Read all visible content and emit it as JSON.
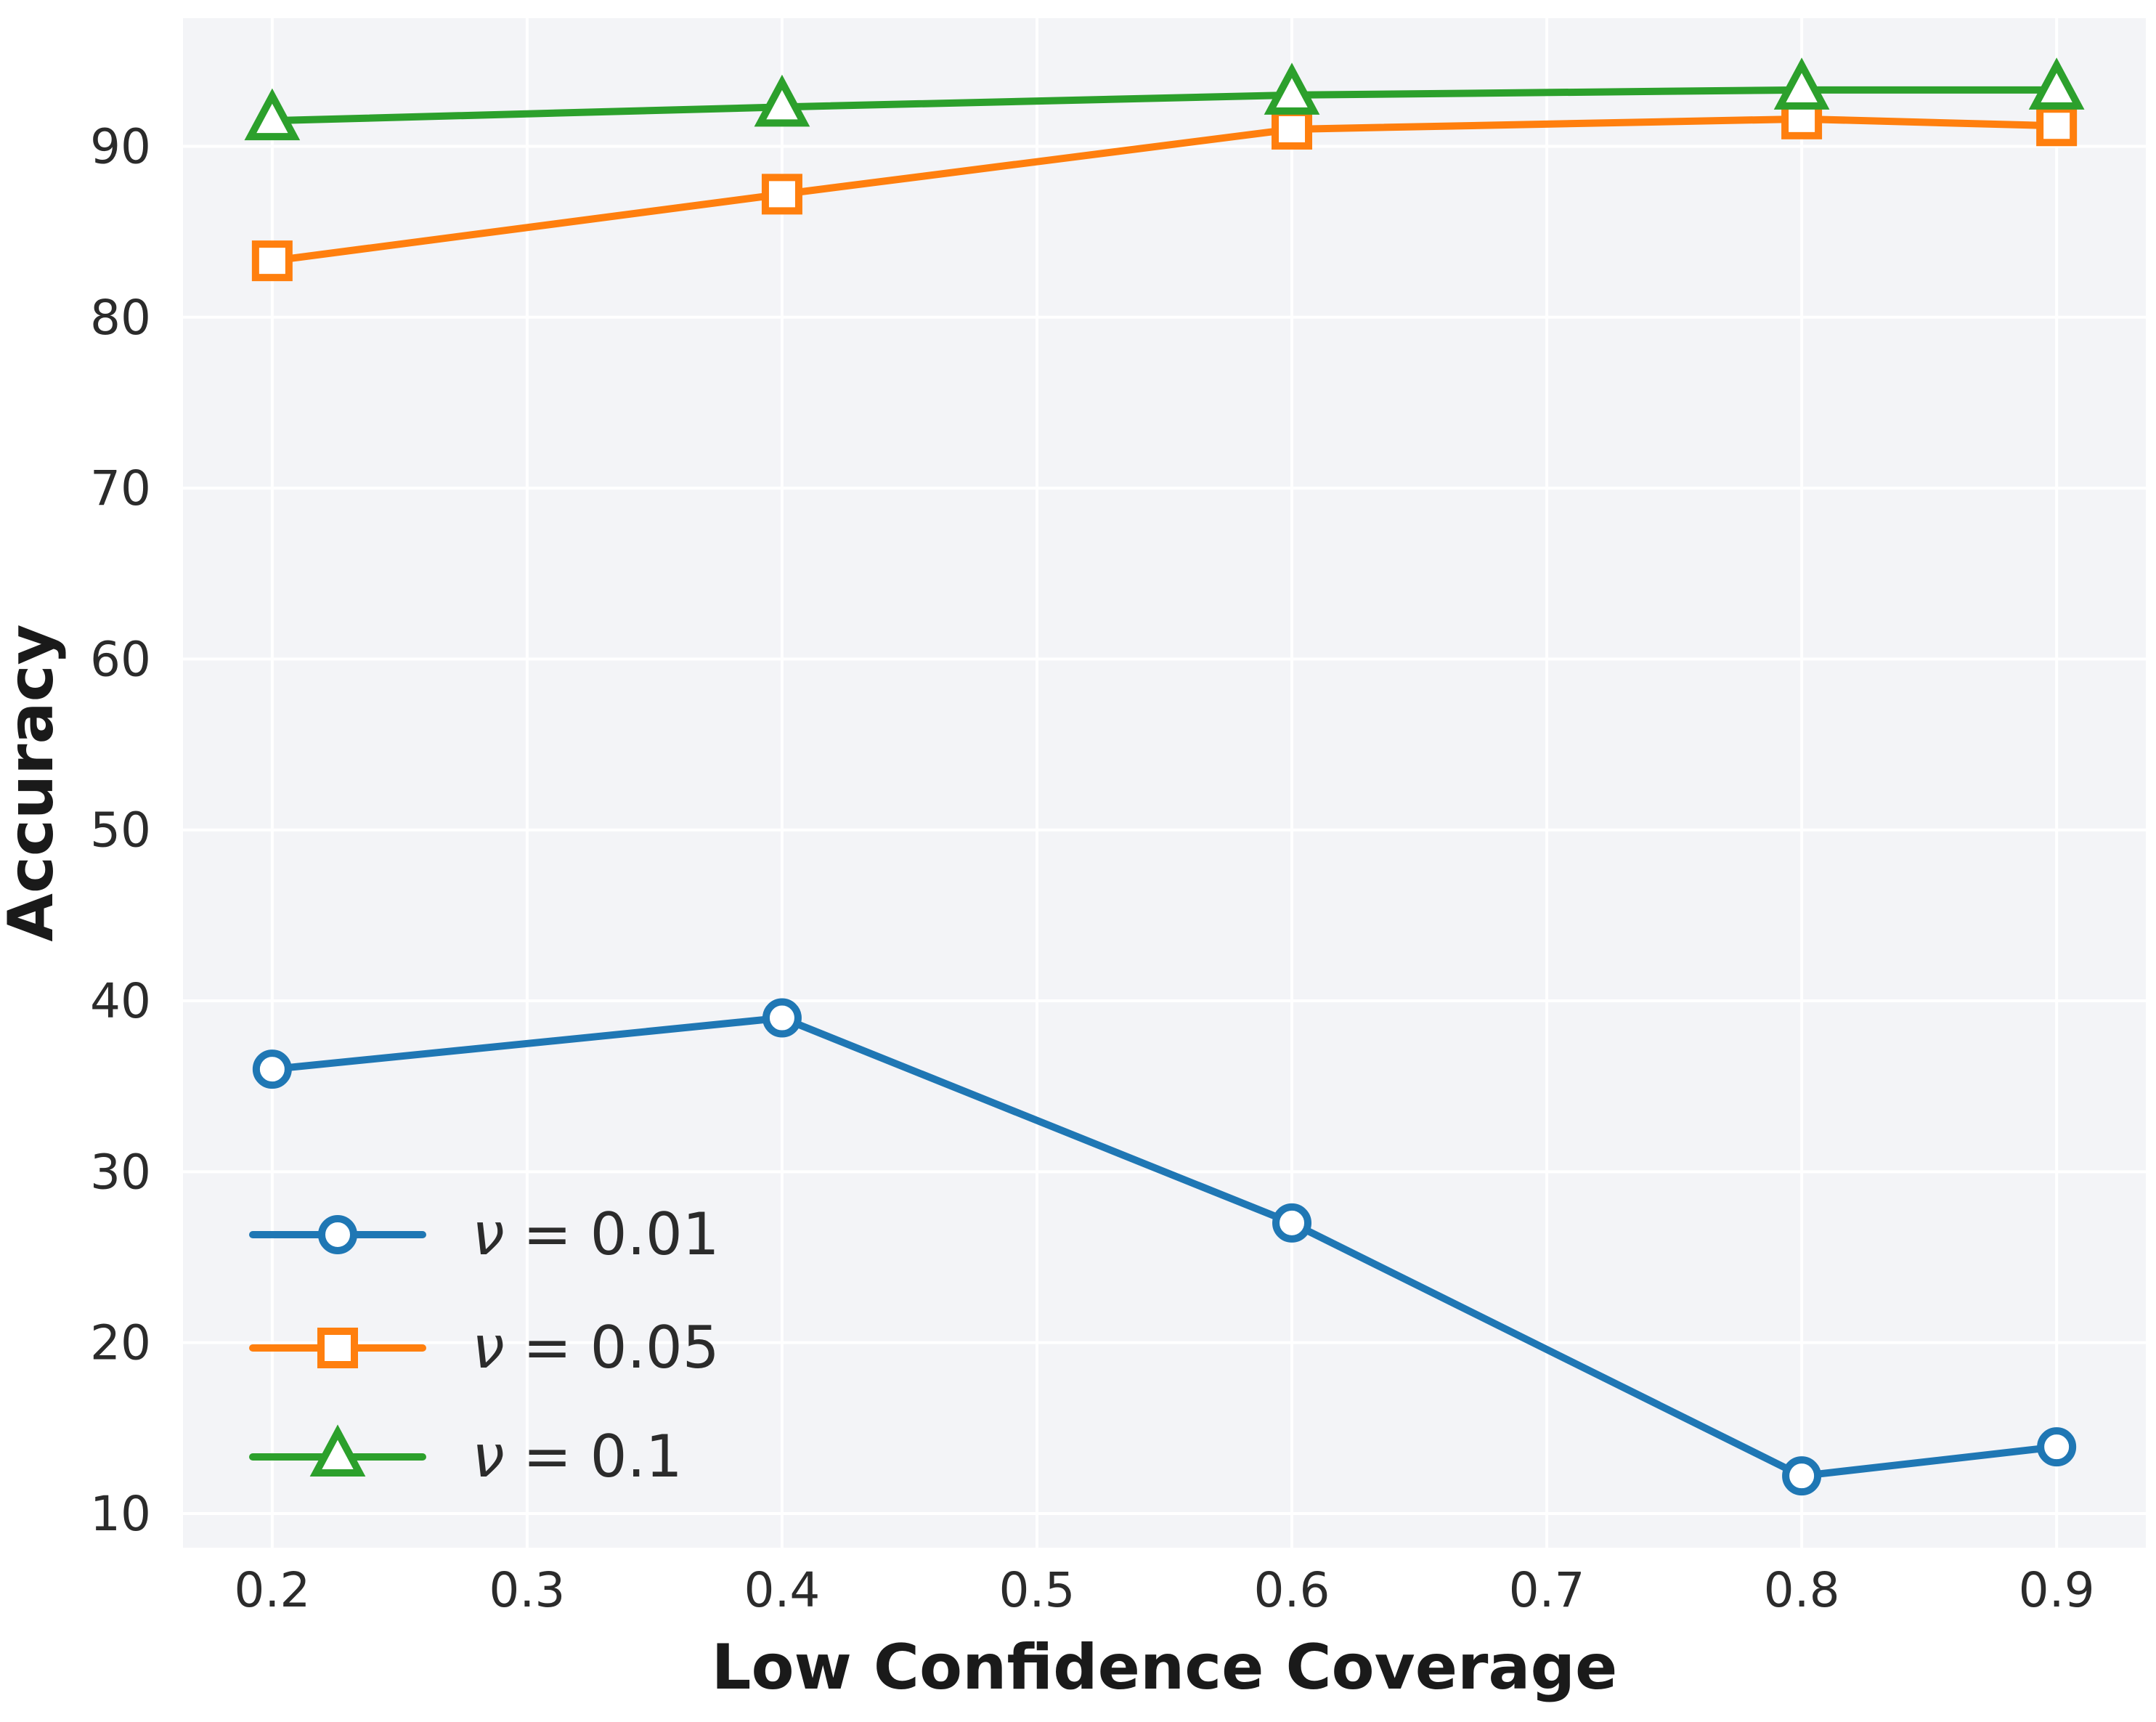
{
  "figure": {
    "background": "#ffffff",
    "panel_color": "#f3f4f7",
    "grid_color": "#ffffff",
    "tick_text_color": "#2b2b2b",
    "label_text_color": "#1a1a1a"
  },
  "chart_data": {
    "type": "line",
    "title": "",
    "xlabel": "Low Confidence Coverage",
    "ylabel": "Accuracy",
    "x": [
      0.2,
      0.4,
      0.6,
      0.8,
      0.9
    ],
    "series": [
      {
        "name": "nu-0.01",
        "label": "ν = 0.01",
        "color": "#1f77b4",
        "marker": "circle",
        "values": [
          36.0,
          39.0,
          27.0,
          12.2,
          13.9
        ]
      },
      {
        "name": "nu-0.05",
        "label": "ν = 0.05",
        "color": "#ff7f0e",
        "marker": "square",
        "values": [
          83.3,
          87.2,
          91.0,
          91.6,
          91.2
        ]
      },
      {
        "name": "nu-0.1",
        "label": "ν = 0.1",
        "color": "#2ca02c",
        "marker": "triangle",
        "values": [
          91.5,
          92.3,
          93.0,
          93.3,
          93.3
        ]
      }
    ],
    "xticks": [
      0.2,
      0.3,
      0.4,
      0.5,
      0.6,
      0.7,
      0.8,
      0.9
    ],
    "xtick_labels": [
      "0.2",
      "0.3",
      "0.4",
      "0.5",
      "0.6",
      "0.7",
      "0.8",
      "0.9"
    ],
    "yticks": [
      10,
      20,
      30,
      40,
      50,
      60,
      70,
      80,
      90
    ],
    "ytick_labels": [
      "10",
      "20",
      "30",
      "40",
      "50",
      "60",
      "70",
      "80",
      "90"
    ],
    "xlim": [
      0.165,
      0.935
    ],
    "ylim": [
      8,
      97.5
    ],
    "grid": true,
    "legend": {
      "position": "lower-left",
      "frame": false,
      "entries": [
        "ν = 0.01",
        "ν = 0.05",
        "ν = 0.1"
      ]
    }
  }
}
